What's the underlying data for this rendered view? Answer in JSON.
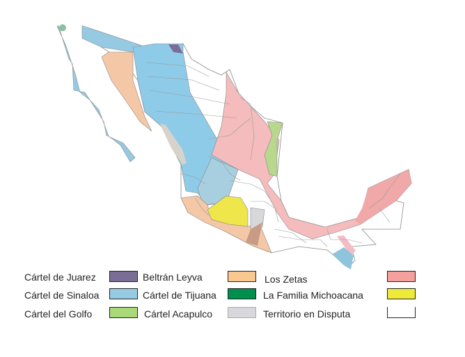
{
  "legend": [
    {
      "label": "Cártel de Juarez",
      "color": "#7a6e96"
    },
    {
      "label": "Beltrán Leyva",
      "color": "#f8c890"
    },
    {
      "label": "Los Zetas",
      "color": "#f4a09c"
    },
    {
      "label": "Cártel de Sinaloa",
      "color": "#95cae2"
    },
    {
      "label": "Cártel de Tijuana",
      "color": "#008f4c"
    },
    {
      "label": "La Familia Michoacana",
      "color": "#eeea3a"
    },
    {
      "label": "Cártel del Golfo",
      "color": "#aad97a"
    },
    {
      "label": "Cártel Acapulco",
      "color": "#d8d8dc"
    },
    {
      "label": "Territorio en Disputa",
      "color": "#ffffff"
    }
  ]
}
